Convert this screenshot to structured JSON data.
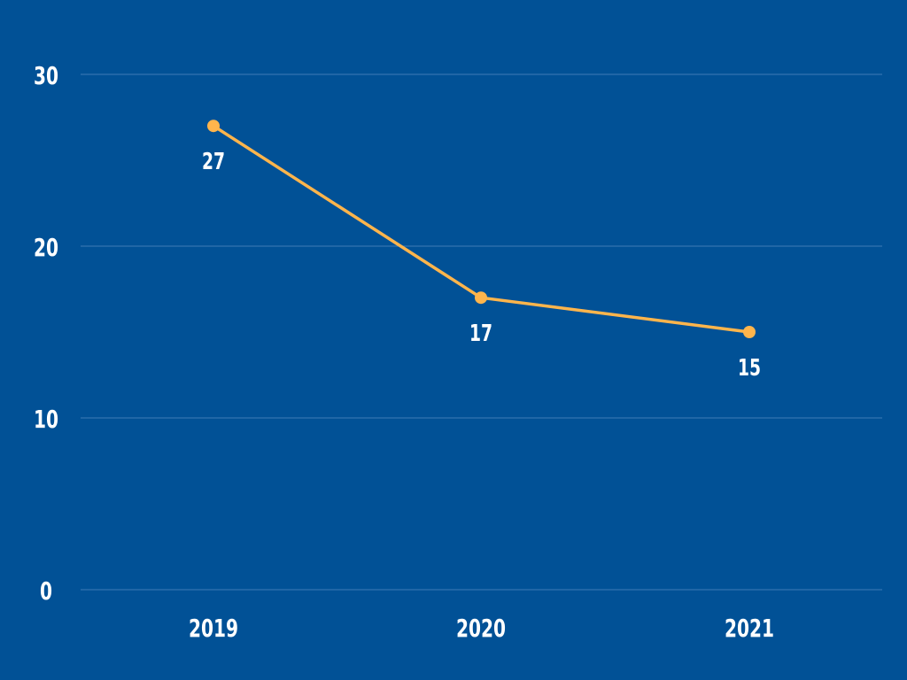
{
  "colors": {
    "background": "#015196",
    "line": "#FFB54C",
    "grid": "#3F7BB5",
    "text": "#FFFFFF"
  },
  "chart_data": {
    "type": "line",
    "title": "",
    "xlabel": "",
    "ylabel": "",
    "categories": [
      "2019",
      "2020",
      "2021"
    ],
    "series": [
      {
        "values": [
          27,
          17,
          15
        ],
        "data_labels": [
          "27",
          "17",
          "15"
        ]
      }
    ],
    "ylim": [
      0,
      30
    ],
    "yticks": [
      0,
      10,
      20,
      30
    ],
    "ytick_labels": [
      "0",
      "10",
      "20",
      "30"
    ],
    "grid": true,
    "legend": "none"
  }
}
